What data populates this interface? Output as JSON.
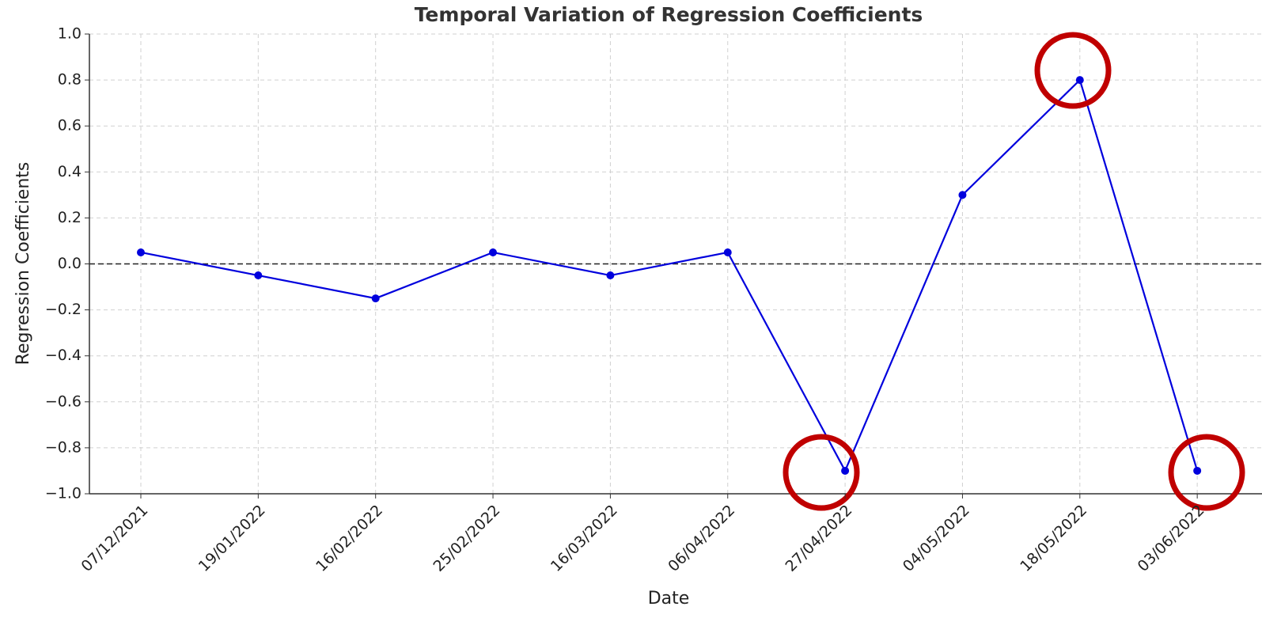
{
  "chart_data": {
    "type": "line",
    "title": "Temporal Variation of Regression Coefficients",
    "x_label": "Date",
    "y_label": "Regression Coefficients",
    "categories": [
      "07/12/2021",
      "19/01/2022",
      "16/02/2022",
      "25/02/2022",
      "16/03/2022",
      "06/04/2022",
      "27/04/2022",
      "04/05/2022",
      "18/05/2022",
      "03/06/2022"
    ],
    "series": [
      {
        "name": "Regression Coefficients",
        "color": "#0000dd",
        "values": [
          0.05,
          -0.05,
          -0.15,
          0.05,
          -0.05,
          0.05,
          -0.9,
          0.3,
          0.8,
          -0.9
        ]
      }
    ],
    "ylim": [
      -1.0,
      1.0
    ],
    "yticks": [
      {
        "value": -1.0,
        "label": "−1.0"
      },
      {
        "value": -0.8,
        "label": "−0.8"
      },
      {
        "value": -0.6,
        "label": "−0.6"
      },
      {
        "value": -0.4,
        "label": "−0.4"
      },
      {
        "value": -0.2,
        "label": "−0.2"
      },
      {
        "value": 0.0,
        "label": "0.0"
      },
      0.2,
      0.4,
      0.6,
      0.8,
      {
        "value": 1.0,
        "label": "1.0"
      }
    ],
    "reference_line": 0,
    "grid": true
  }
}
